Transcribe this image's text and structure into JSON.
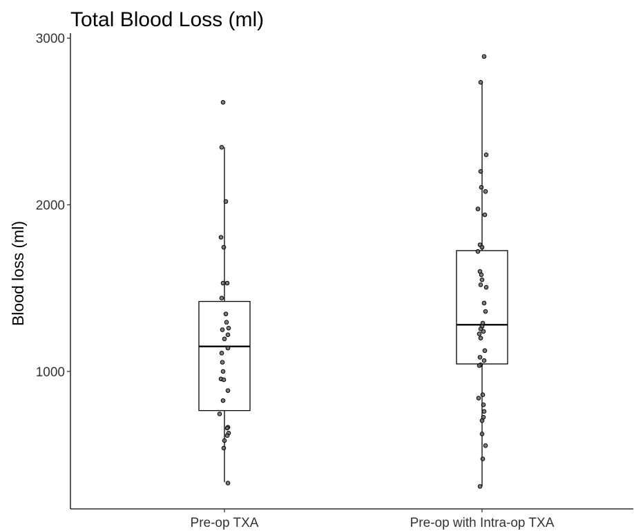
{
  "chart_data": {
    "type": "boxplot",
    "title": "Total Blood Loss (ml)",
    "xlabel": "",
    "ylabel": "Blood loss (ml)",
    "ylim": [
      175,
      3030
    ],
    "y_ticks": [
      1000,
      2000,
      3000
    ],
    "grid": false,
    "legend": "none",
    "categories": [
      "Pre-op TXA",
      "Pre-op with Intra-op TXA"
    ],
    "boxes": [
      {
        "category": "Pre-op TXA",
        "whisker_low": 335,
        "q1": 765,
        "median": 1150,
        "q3": 1420,
        "whisker_high": 2345
      },
      {
        "category": "Pre-op with Intra-op TXA",
        "whisker_low": 310,
        "q1": 1045,
        "median": 1280,
        "q3": 1725,
        "whisker_high": 2740
      }
    ],
    "points": [
      [
        {
          "x": -0.02,
          "y": 2615
        },
        {
          "x": -0.04,
          "y": 2345
        },
        {
          "x": 0.02,
          "y": 2020
        },
        {
          "x": -0.05,
          "y": 1805
        },
        {
          "x": -0.01,
          "y": 1745
        },
        {
          "x": -0.02,
          "y": 1530
        },
        {
          "x": 0.04,
          "y": 1530
        },
        {
          "x": -0.04,
          "y": 1440
        },
        {
          "x": 0.02,
          "y": 1345
        },
        {
          "x": 0.03,
          "y": 1295
        },
        {
          "x": 0.06,
          "y": 1260
        },
        {
          "x": -0.03,
          "y": 1250
        },
        {
          "x": 0.05,
          "y": 1220
        },
        {
          "x": 0.0,
          "y": 1195
        },
        {
          "x": 0.05,
          "y": 1140
        },
        {
          "x": -0.04,
          "y": 1110
        },
        {
          "x": -0.03,
          "y": 1055
        },
        {
          "x": -0.02,
          "y": 1000
        },
        {
          "x": -0.05,
          "y": 955
        },
        {
          "x": -0.01,
          "y": 950
        },
        {
          "x": 0.05,
          "y": 885
        },
        {
          "x": -0.02,
          "y": 825
        },
        {
          "x": -0.07,
          "y": 745
        },
        {
          "x": 0.05,
          "y": 665
        },
        {
          "x": 0.04,
          "y": 660
        },
        {
          "x": 0.06,
          "y": 630
        },
        {
          "x": 0.04,
          "y": 615
        },
        {
          "x": 0.0,
          "y": 585
        },
        {
          "x": -0.01,
          "y": 540
        },
        {
          "x": 0.05,
          "y": 330
        }
      ],
      [
        {
          "x": 0.03,
          "y": 2890
        },
        {
          "x": -0.02,
          "y": 2735
        },
        {
          "x": 0.06,
          "y": 2300
        },
        {
          "x": -0.02,
          "y": 2200
        },
        {
          "x": -0.01,
          "y": 2105
        },
        {
          "x": 0.05,
          "y": 2080
        },
        {
          "x": -0.06,
          "y": 1975
        },
        {
          "x": 0.04,
          "y": 1940
        },
        {
          "x": -0.03,
          "y": 1760
        },
        {
          "x": 0.0,
          "y": 1745
        },
        {
          "x": -0.06,
          "y": 1720
        },
        {
          "x": -0.03,
          "y": 1600
        },
        {
          "x": -0.01,
          "y": 1580
        },
        {
          "x": 0.0,
          "y": 1550
        },
        {
          "x": -0.02,
          "y": 1520
        },
        {
          "x": 0.06,
          "y": 1505
        },
        {
          "x": 0.03,
          "y": 1410
        },
        {
          "x": 0.05,
          "y": 1360
        },
        {
          "x": 0.01,
          "y": 1290
        },
        {
          "x": 0.0,
          "y": 1270
        },
        {
          "x": -0.02,
          "y": 1255
        },
        {
          "x": 0.02,
          "y": 1240
        },
        {
          "x": -0.04,
          "y": 1225
        },
        {
          "x": -0.02,
          "y": 1200
        },
        {
          "x": 0.04,
          "y": 1125
        },
        {
          "x": -0.03,
          "y": 1085
        },
        {
          "x": 0.03,
          "y": 1065
        },
        {
          "x": -0.02,
          "y": 1040
        },
        {
          "x": -0.04,
          "y": 1035
        },
        {
          "x": 0.01,
          "y": 860
        },
        {
          "x": -0.05,
          "y": 840
        },
        {
          "x": 0.02,
          "y": 800
        },
        {
          "x": 0.03,
          "y": 760
        },
        {
          "x": 0.02,
          "y": 725
        },
        {
          "x": 0.0,
          "y": 705
        },
        {
          "x": 0.0,
          "y": 625
        },
        {
          "x": 0.05,
          "y": 555
        },
        {
          "x": 0.01,
          "y": 475
        },
        {
          "x": -0.03,
          "y": 310
        }
      ]
    ]
  }
}
